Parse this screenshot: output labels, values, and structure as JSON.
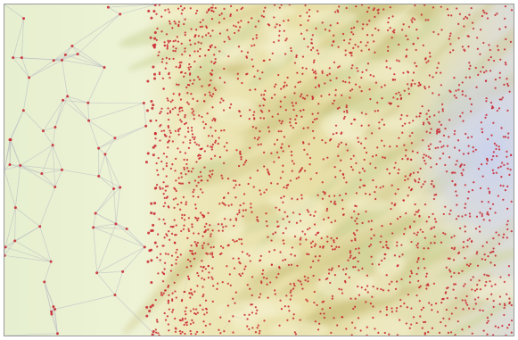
{
  "map": {
    "title": "",
    "colors": {
      "lowland": "#e8f0cf",
      "lowland_edge": "#f2f3d6",
      "upland": "#e9dfa6",
      "ridge_shadow": "#c9c07a",
      "valley_green": "#cdd59a",
      "highland_blue": "#cfd6ec",
      "mesh_line": "#b9bcc4",
      "node": "#c8202a"
    },
    "layers": [
      "terrain-relief",
      "triangulation-mesh",
      "sample-nodes"
    ]
  }
}
